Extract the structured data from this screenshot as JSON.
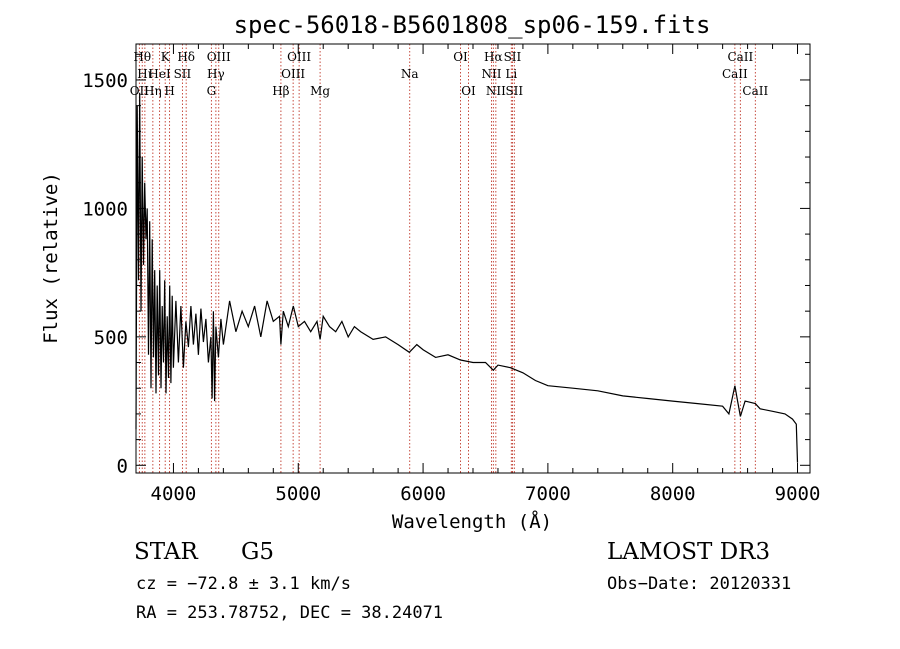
{
  "chart_data": {
    "type": "line",
    "title": "spec-56018-B5601808_sp06-159.fits",
    "xlabel": "Wavelength (Å)",
    "ylabel": "Flux (relative)",
    "xlim": [
      3700,
      9100
    ],
    "ylim": [
      -30,
      1640
    ],
    "xticks": [
      4000,
      5000,
      6000,
      7000,
      8000,
      9000
    ],
    "yticks": [
      0,
      500,
      1000,
      1500
    ],
    "series": [
      {
        "name": "flux",
        "x": [
          3700,
          3710,
          3720,
          3730,
          3740,
          3750,
          3760,
          3770,
          3780,
          3790,
          3800,
          3810,
          3820,
          3830,
          3840,
          3850,
          3860,
          3870,
          3880,
          3890,
          3900,
          3910,
          3920,
          3930,
          3940,
          3950,
          3960,
          3970,
          3980,
          3990,
          4000,
          4020,
          4040,
          4060,
          4080,
          4100,
          4120,
          4140,
          4160,
          4180,
          4200,
          4220,
          4240,
          4260,
          4280,
          4300,
          4310,
          4320,
          4330,
          4340,
          4360,
          4380,
          4400,
          4450,
          4500,
          4550,
          4600,
          4650,
          4700,
          4750,
          4800,
          4850,
          4861,
          4880,
          4920,
          4960,
          5000,
          5050,
          5100,
          5150,
          5175,
          5200,
          5250,
          5300,
          5350,
          5400,
          5450,
          5500,
          5600,
          5700,
          5800,
          5890,
          5950,
          6000,
          6100,
          6200,
          6300,
          6400,
          6500,
          6563,
          6600,
          6700,
          6800,
          6900,
          7000,
          7200,
          7400,
          7600,
          7800,
          8000,
          8200,
          8400,
          8450,
          8498,
          8520,
          8542,
          8580,
          8662,
          8700,
          8800,
          8900,
          8960,
          8990,
          9000
        ],
        "values": [
          140,
          1400,
          720,
          1450,
          600,
          1200,
          780,
          1100,
          880,
          1000,
          430,
          950,
          300,
          880,
          420,
          760,
          280,
          700,
          350,
          760,
          300,
          620,
          400,
          720,
          280,
          580,
          340,
          700,
          320,
          660,
          380,
          640,
          400,
          620,
          380,
          560,
          460,
          620,
          470,
          590,
          430,
          610,
          480,
          570,
          400,
          500,
          260,
          600,
          250,
          540,
          420,
          570,
          470,
          640,
          520,
          600,
          540,
          620,
          500,
          640,
          560,
          580,
          470,
          600,
          540,
          620,
          540,
          560,
          520,
          560,
          490,
          580,
          540,
          520,
          560,
          500,
          540,
          520,
          490,
          500,
          470,
          440,
          470,
          450,
          420,
          430,
          410,
          400,
          400,
          370,
          390,
          380,
          360,
          330,
          310,
          300,
          290,
          270,
          260,
          250,
          240,
          230,
          200,
          310,
          250,
          190,
          250,
          240,
          220,
          210,
          200,
          180,
          160,
          10
        ]
      }
    ],
    "lines": [
      {
        "wl": 3727,
        "label": "OII",
        "row": 2
      },
      {
        "wl": 3750,
        "label": "Hθ",
        "row": 0
      },
      {
        "wl": 3771,
        "label": "Hι",
        "row": 1
      },
      {
        "wl": 3835,
        "label": "Hη",
        "row": 2
      },
      {
        "wl": 3889,
        "label": "HeI",
        "row": 1
      },
      {
        "wl": 3934,
        "label": "K",
        "row": 0
      },
      {
        "wl": 3969,
        "label": "H",
        "row": 2
      },
      {
        "wl": 4072,
        "label": "SII",
        "row": 1
      },
      {
        "wl": 4102,
        "label": "Hδ",
        "row": 0
      },
      {
        "wl": 4304,
        "label": "G",
        "row": 2
      },
      {
        "wl": 4340,
        "label": "Hγ",
        "row": 1
      },
      {
        "wl": 4363,
        "label": "OIII",
        "row": 0
      },
      {
        "wl": 4861,
        "label": "Hβ",
        "row": 2
      },
      {
        "wl": 4959,
        "label": "OIII",
        "row": 1
      },
      {
        "wl": 5007,
        "label": "OIII",
        "row": 0
      },
      {
        "wl": 5175,
        "label": "Mg",
        "row": 2
      },
      {
        "wl": 5893,
        "label": "Na",
        "row": 1
      },
      {
        "wl": 6300,
        "label": "OI",
        "row": 0
      },
      {
        "wl": 6364,
        "label": "OI",
        "row": 2
      },
      {
        "wl": 6548,
        "label": "NII",
        "row": 1
      },
      {
        "wl": 6563,
        "label": "Hα",
        "row": 0
      },
      {
        "wl": 6583,
        "label": "NII",
        "row": 2
      },
      {
        "wl": 6707,
        "label": "Li",
        "row": 1
      },
      {
        "wl": 6716,
        "label": "SII",
        "row": 0
      },
      {
        "wl": 6731,
        "label": "SII",
        "row": 2
      },
      {
        "wl": 8498,
        "label": "CaII",
        "row": 1
      },
      {
        "wl": 8542,
        "label": "CaII",
        "row": 0
      },
      {
        "wl": 8662,
        "label": "CaII",
        "row": 2
      }
    ]
  },
  "info": {
    "class": "STAR",
    "subclass": "G5",
    "survey": "LAMOST DR3",
    "cz": "cz = −72.8 ± 3.1 km/s",
    "obs_date": "Obs−Date: 20120331",
    "coords": "RA = 253.78752, DEC =  38.24071"
  }
}
